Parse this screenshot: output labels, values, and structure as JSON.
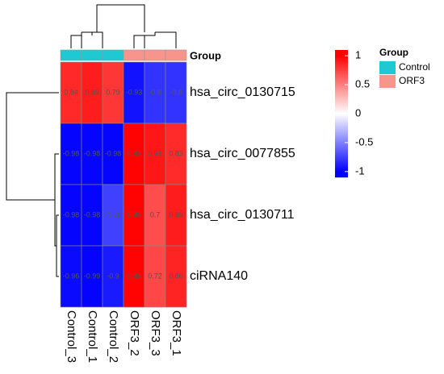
{
  "chart_data": {
    "type": "heatmap",
    "x": [
      "Control_3",
      "Control_1",
      "Control_2",
      "ORF3_2",
      "ORF3_3",
      "ORF3_1"
    ],
    "y": [
      "hsa_circ_0130715",
      "hsa_circ_0077855",
      "hsa_circ_0130711",
      "ciRNA140"
    ],
    "values": [
      [
        0.84,
        0.89,
        0.79,
        -0.93,
        -0.8,
        -0.8
      ],
      [
        -0.98,
        -0.98,
        -0.98,
        0.99,
        0.91,
        0.83
      ],
      [
        -0.98,
        -0.98,
        -0.75,
        0.99,
        0.7,
        0.89
      ],
      [
        -0.96,
        -0.99,
        -0.9,
        0.99,
        0.72,
        0.86
      ]
    ],
    "color_scale": [
      "#0000ff",
      "#ffffff",
      "#ff0000"
    ],
    "clim": [
      -1.1,
      1.1
    ],
    "colorbar_ticks": [
      1,
      0.5,
      0,
      -0.5,
      -1
    ],
    "annotation_label": "Group",
    "column_groups": [
      "Control",
      "Control",
      "Control",
      "ORF3",
      "ORF3",
      "ORF3"
    ],
    "group_legend": {
      "title": "Group",
      "series": [
        {
          "name": "Control",
          "color": "#1fc9d1"
        },
        {
          "name": "ORF3",
          "color": "#f7958d"
        }
      ]
    }
  }
}
